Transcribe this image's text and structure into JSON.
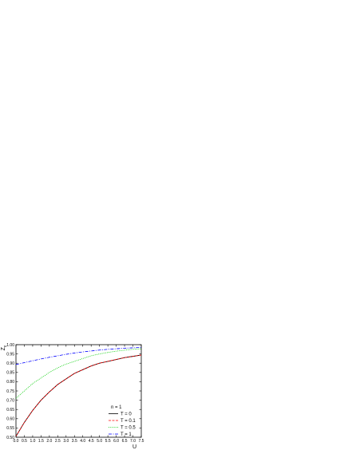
{
  "chart_data": {
    "type": "line",
    "title": "",
    "xlabel": "U",
    "ylabel": "Z",
    "ylabel_subscript": "c",
    "xlim": [
      0,
      7.5
    ],
    "ylim": [
      0.5,
      1.0
    ],
    "xticks": [
      0.0,
      0.5,
      1.0,
      1.5,
      2.0,
      2.5,
      3.0,
      3.5,
      4.0,
      4.5,
      5.0,
      5.5,
      6.0,
      6.5,
      7.0,
      7.5
    ],
    "xtick_labels": [
      "0.0",
      "0.5",
      "1.0",
      "1.5",
      "2.0",
      "2.5",
      "3.0",
      "3.5",
      "4.0",
      "4.5",
      "5.0",
      "5.5",
      "6.0",
      "6.5",
      "7.0",
      "7.5"
    ],
    "yticks": [
      0.5,
      0.55,
      0.6,
      0.65,
      0.7,
      0.75,
      0.8,
      0.85,
      0.9,
      0.95,
      1.0
    ],
    "ytick_labels": [
      "0.50",
      "0.55",
      "0.60",
      "0.65",
      "0.70",
      "0.75",
      "0.80",
      "0.85",
      "0.90",
      "0.95",
      "1.00"
    ],
    "grid": false,
    "legend_title": "n = 1",
    "legend_position": "bottom-right",
    "x": [
      0,
      0.5,
      1.0,
      1.5,
      2.0,
      2.5,
      3.0,
      3.5,
      4.0,
      4.5,
      5.0,
      5.5,
      6.0,
      6.5,
      7.0,
      7.5
    ],
    "series": [
      {
        "name": "T = 0",
        "color": "#000000",
        "dash": "solid",
        "values": [
          0.505,
          0.58,
          0.645,
          0.7,
          0.745,
          0.785,
          0.815,
          0.845,
          0.865,
          0.885,
          0.9,
          0.91,
          0.92,
          0.93,
          0.937,
          0.944
        ]
      },
      {
        "name": "T = 0.1",
        "color": "#ff0000",
        "dash": "dash",
        "values": [
          0.505,
          0.58,
          0.645,
          0.7,
          0.745,
          0.785,
          0.815,
          0.845,
          0.865,
          0.885,
          0.9,
          0.91,
          0.92,
          0.93,
          0.937,
          0.944
        ]
      },
      {
        "name": "T = 0.5",
        "color": "#00cc00",
        "dash": "dot",
        "values": [
          0.71,
          0.75,
          0.79,
          0.82,
          0.85,
          0.875,
          0.895,
          0.91,
          0.925,
          0.94,
          0.95,
          0.958,
          0.965,
          0.97,
          0.975,
          0.978
        ]
      },
      {
        "name": "T = 1",
        "color": "#0000ff",
        "dash": "dashdot",
        "values": [
          0.893,
          0.903,
          0.913,
          0.923,
          0.932,
          0.94,
          0.948,
          0.955,
          0.961,
          0.966,
          0.971,
          0.975,
          0.978,
          0.981,
          0.983,
          0.985
        ]
      }
    ]
  }
}
